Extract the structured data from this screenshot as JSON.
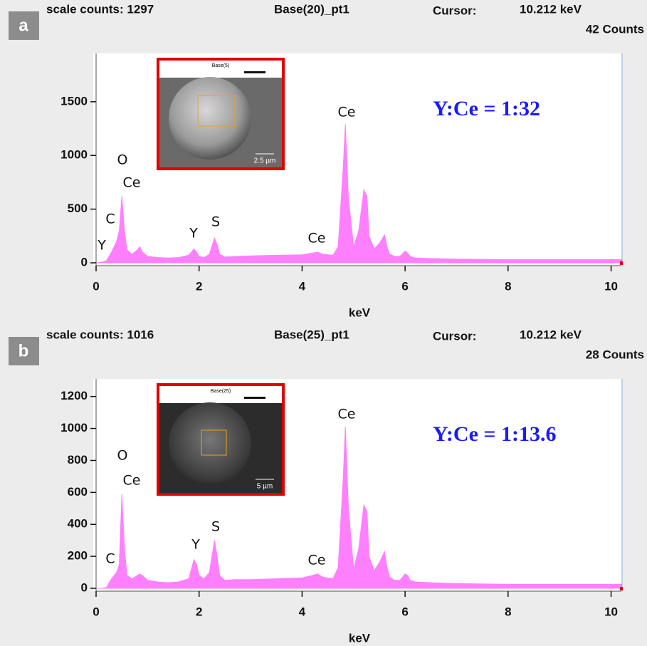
{
  "chart_data": [
    {
      "type": "area",
      "panel_label": "a",
      "scale_counts": "scale counts: 1297",
      "spectrum_name": "Base(20)_pt1",
      "cursor_label": "Cursor:",
      "cursor_energy": "10.212 keV",
      "cursor_counts": "42 Counts",
      "x_label": "keV",
      "annotation": "Y:Ce = 1:32",
      "color": "#ff80ff",
      "peak_labels": [
        "O",
        "Ce",
        "C",
        "Y",
        "Y",
        "S",
        "Ce",
        "Ce"
      ],
      "inset": {
        "title": "Base(5)",
        "scale_bar": "2.5 µm"
      },
      "x": [
        0,
        0.1,
        0.2,
        0.3,
        0.4,
        0.45,
        0.5,
        0.55,
        0.6,
        0.7,
        0.8,
        0.85,
        0.9,
        1.0,
        1.2,
        1.4,
        1.6,
        1.8,
        1.9,
        1.95,
        2.0,
        2.1,
        2.2,
        2.3,
        2.35,
        2.4,
        2.5,
        2.7,
        3.0,
        3.5,
        4.0,
        4.2,
        4.3,
        4.4,
        4.6,
        4.7,
        4.8,
        4.84,
        4.9,
        5.0,
        5.1,
        5.2,
        5.26,
        5.3,
        5.4,
        5.5,
        5.6,
        5.65,
        5.7,
        5.8,
        5.9,
        6.0,
        6.05,
        6.1,
        6.2,
        6.5,
        7.0,
        8.0,
        9.0,
        10.0,
        10.2
      ],
      "values": [
        0,
        5,
        20,
        100,
        200,
        300,
        620,
        300,
        120,
        80,
        120,
        150,
        100,
        60,
        50,
        45,
        50,
        70,
        130,
        100,
        60,
        50,
        80,
        230,
        170,
        80,
        55,
        60,
        65,
        70,
        75,
        90,
        100,
        80,
        70,
        150,
        900,
        1290,
        600,
        150,
        300,
        680,
        620,
        250,
        130,
        180,
        260,
        150,
        80,
        60,
        60,
        110,
        90,
        60,
        45,
        40,
        35,
        30,
        30,
        30,
        30
      ],
      "xlim": [
        0,
        10.2
      ],
      "ylim": [
        0,
        1950
      ],
      "xticks": [
        0,
        2,
        4,
        6,
        8,
        10
      ],
      "yticks": [
        0,
        500,
        1000,
        1500
      ]
    },
    {
      "type": "area",
      "panel_label": "b",
      "scale_counts": "scale counts: 1016",
      "spectrum_name": "Base(25)_pt1",
      "cursor_label": "Cursor:",
      "cursor_energy": "10.212 keV",
      "cursor_counts": "28 Counts",
      "x_label": "keV",
      "annotation": "Y:Ce = 1:13.6",
      "color": "#ff80ff",
      "peak_labels": [
        "O",
        "Ce",
        "C",
        "Y",
        "S",
        "Ce",
        "Ce"
      ],
      "inset": {
        "title": "Base(25)",
        "scale_bar": "5 µm"
      },
      "x": [
        0,
        0.1,
        0.2,
        0.3,
        0.4,
        0.45,
        0.5,
        0.55,
        0.6,
        0.7,
        0.8,
        0.85,
        0.9,
        1.0,
        1.2,
        1.4,
        1.6,
        1.8,
        1.9,
        1.95,
        2.0,
        2.1,
        2.2,
        2.3,
        2.35,
        2.4,
        2.5,
        2.7,
        3.0,
        3.5,
        4.0,
        4.2,
        4.3,
        4.4,
        4.6,
        4.7,
        4.8,
        4.84,
        4.9,
        5.0,
        5.1,
        5.2,
        5.26,
        5.3,
        5.4,
        5.5,
        5.6,
        5.65,
        5.7,
        5.8,
        5.9,
        6.0,
        6.05,
        6.1,
        6.2,
        6.5,
        7.0,
        8.0,
        9.0,
        10.0,
        10.2
      ],
      "values": [
        0,
        0,
        5,
        60,
        100,
        150,
        590,
        250,
        80,
        60,
        80,
        90,
        80,
        50,
        40,
        35,
        40,
        60,
        180,
        150,
        80,
        60,
        100,
        300,
        200,
        80,
        50,
        55,
        55,
        60,
        65,
        80,
        90,
        70,
        60,
        130,
        700,
        1010,
        500,
        120,
        250,
        520,
        480,
        200,
        110,
        160,
        230,
        130,
        70,
        50,
        50,
        90,
        80,
        50,
        40,
        35,
        30,
        25,
        25,
        25,
        25
      ],
      "xlim": [
        0,
        10.2
      ],
      "ylim": [
        0,
        1310
      ],
      "xticks": [
        0,
        2,
        4,
        6,
        8,
        10
      ],
      "yticks": [
        0,
        200,
        400,
        600,
        800,
        1000,
        1200
      ]
    }
  ]
}
